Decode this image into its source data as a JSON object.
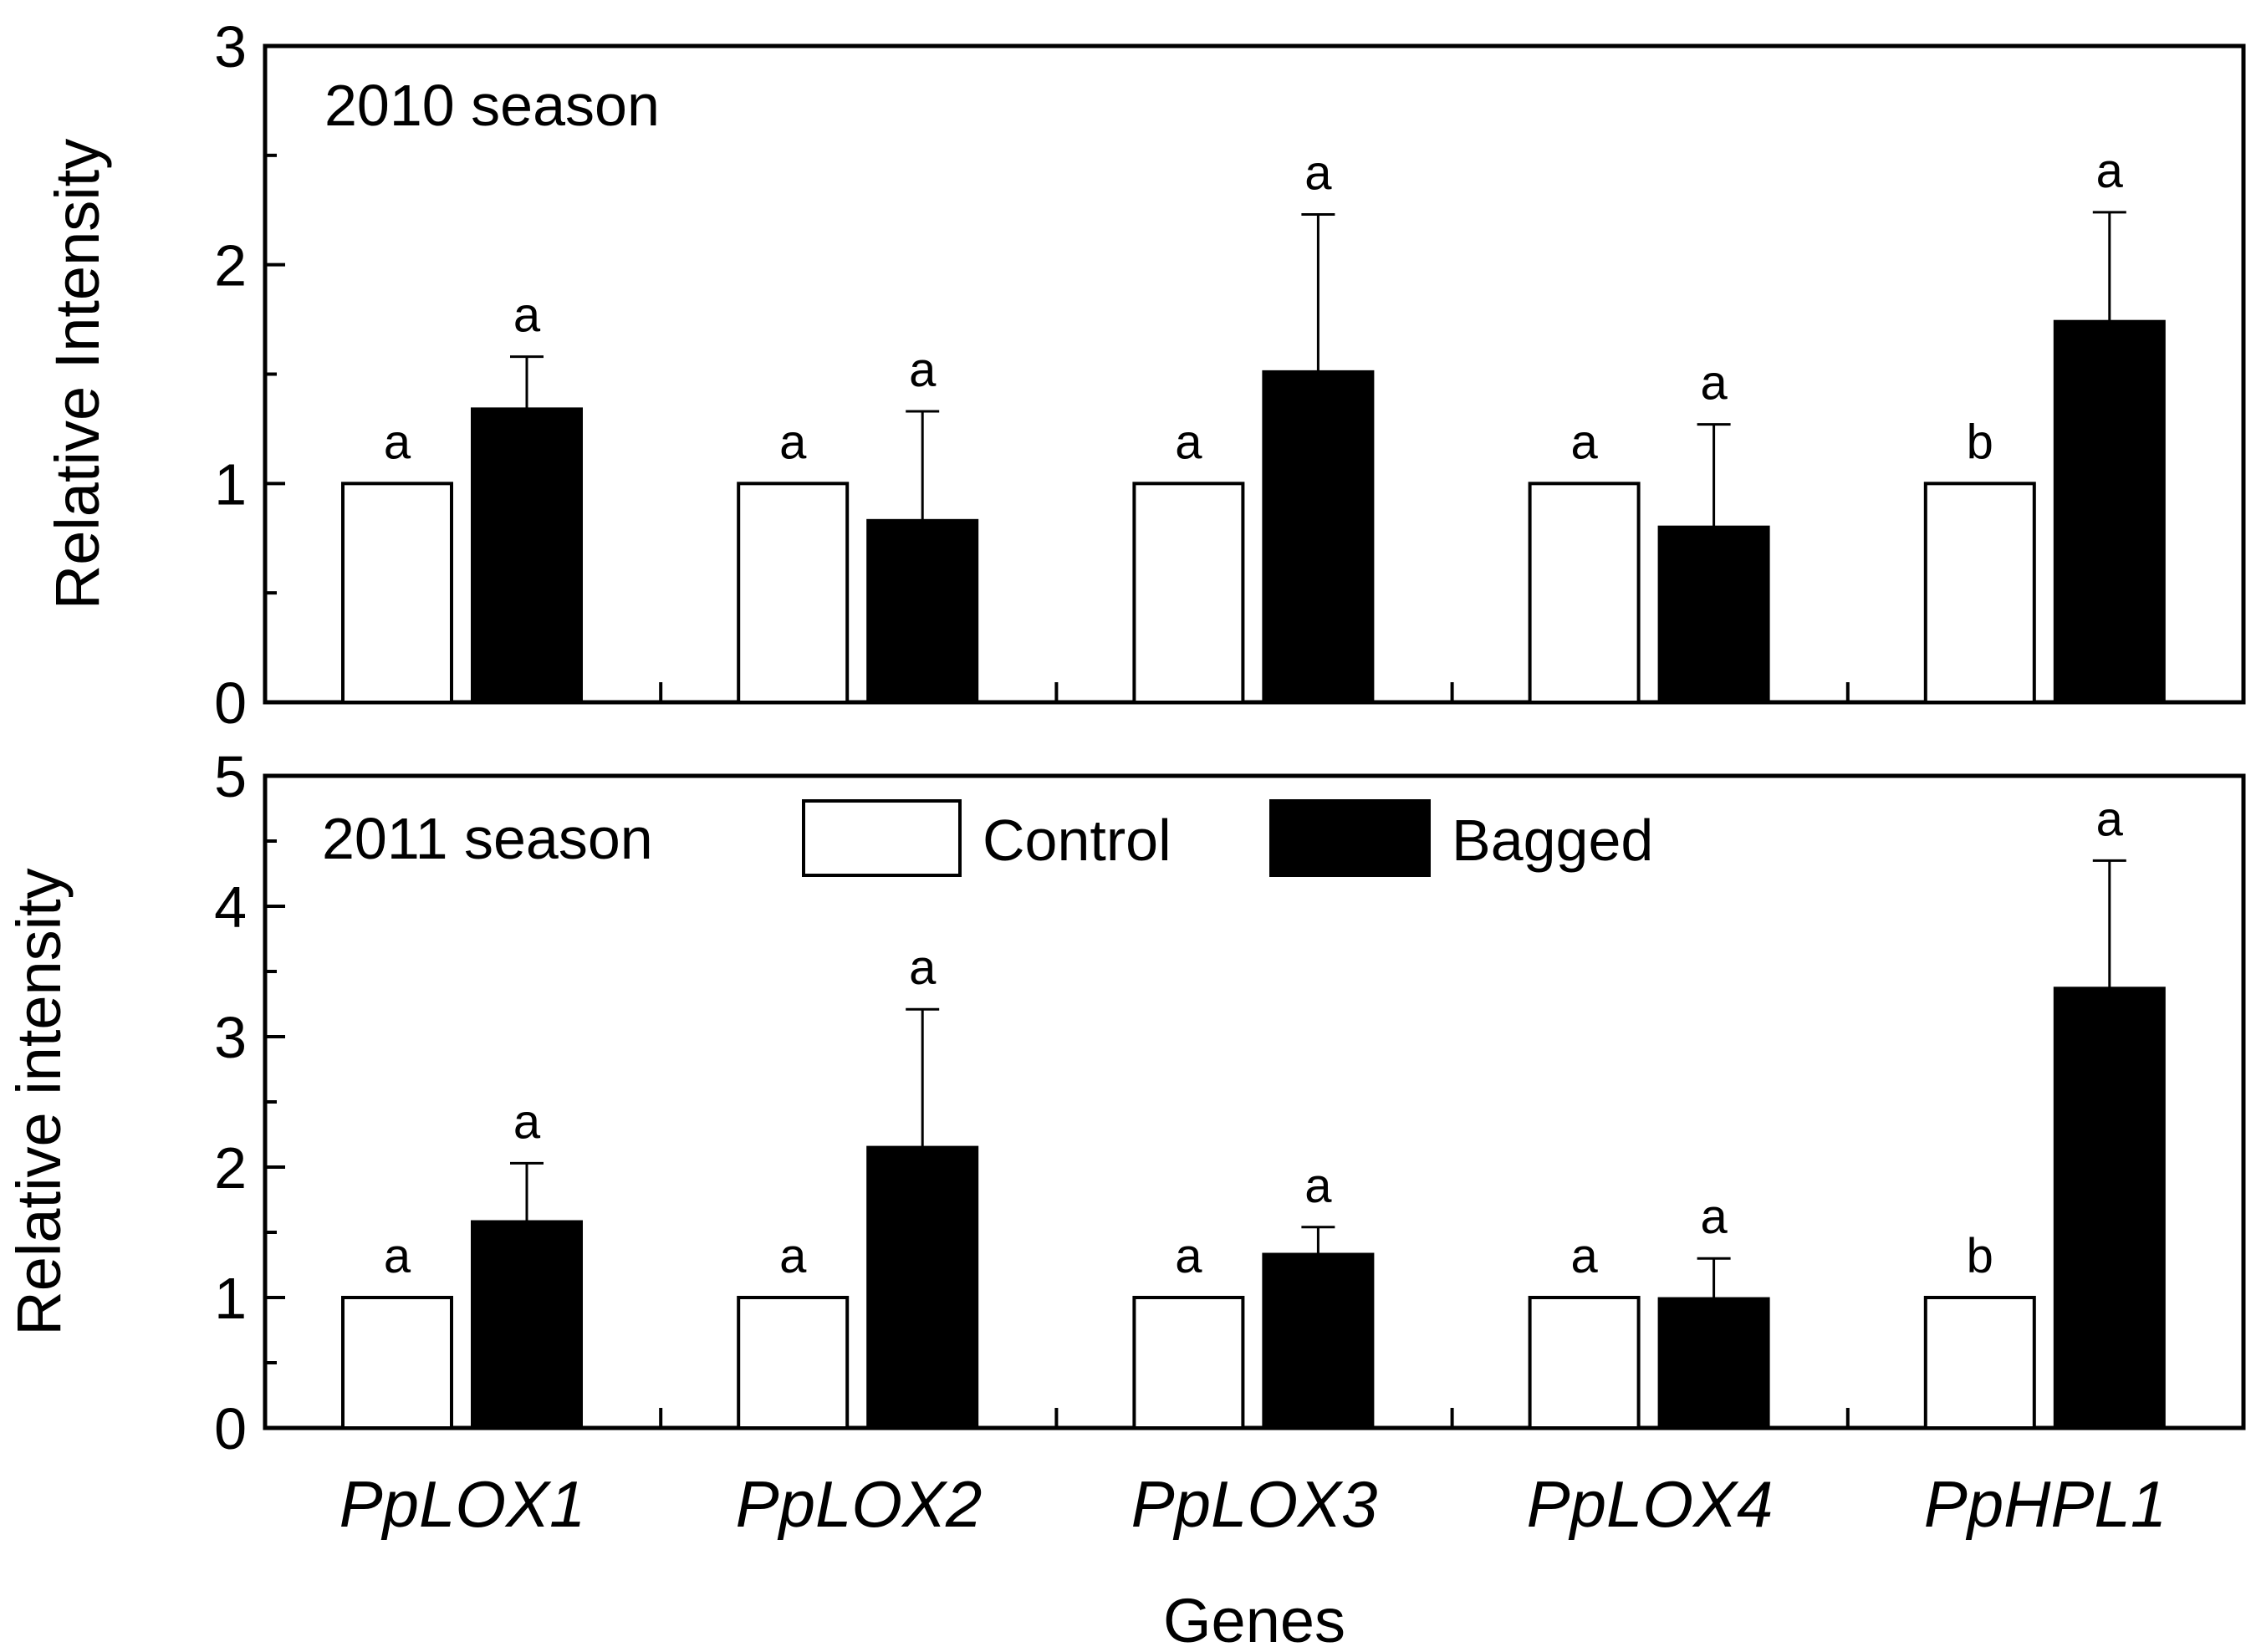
{
  "chart_data": [
    {
      "type": "bar",
      "title": "2010 season",
      "xlabel": "",
      "ylabel": "Relative Intensity",
      "ylim": [
        0,
        3
      ],
      "yticks": [
        "0",
        "1",
        "2",
        "3"
      ],
      "categories": [
        "PpLOX1",
        "PpLOX2",
        "PpLOX3",
        "PpLOX4",
        "PpHPL1"
      ],
      "series": [
        {
          "name": "Control",
          "color": "#ffffff",
          "values": [
            1.0,
            1.0,
            1.0,
            1.0,
            1.0
          ],
          "errors": [
            0,
            0,
            0,
            0,
            0
          ],
          "letters": [
            "a",
            "a",
            "a",
            "a",
            "b"
          ]
        },
        {
          "name": "Bagged",
          "color": "#000000",
          "values": [
            1.34,
            0.83,
            1.51,
            0.8,
            1.74
          ],
          "errors": [
            0.24,
            0.5,
            0.72,
            0.47,
            0.5
          ],
          "letters": [
            "a",
            "a",
            "a",
            "a",
            "a"
          ]
        }
      ]
    },
    {
      "type": "bar",
      "title": "2011 season",
      "xlabel": "Genes",
      "ylabel": "Relative intensity",
      "ylim": [
        0,
        5
      ],
      "yticks": [
        "0",
        "1",
        "2",
        "3",
        "4",
        "5"
      ],
      "categories": [
        "PpLOX1",
        "PpLOX2",
        "PpLOX3",
        "PpLOX4",
        "PpHPL1"
      ],
      "legend": {
        "position": "top-center",
        "entries": [
          {
            "label": "Control",
            "color": "#ffffff"
          },
          {
            "label": "Bagged",
            "color": "#000000"
          }
        ]
      },
      "series": [
        {
          "name": "Control",
          "color": "#ffffff",
          "values": [
            1.0,
            1.0,
            1.0,
            1.0,
            1.0
          ],
          "errors": [
            0,
            0,
            0,
            0,
            0
          ],
          "letters": [
            "a",
            "a",
            "a",
            "a",
            "b"
          ]
        },
        {
          "name": "Bagged",
          "color": "#000000",
          "values": [
            1.58,
            2.15,
            1.33,
            0.99,
            3.37
          ],
          "errors": [
            0.45,
            1.06,
            0.21,
            0.31,
            0.98
          ],
          "letters": [
            "a",
            "a",
            "a",
            "a",
            "a"
          ]
        }
      ]
    }
  ]
}
